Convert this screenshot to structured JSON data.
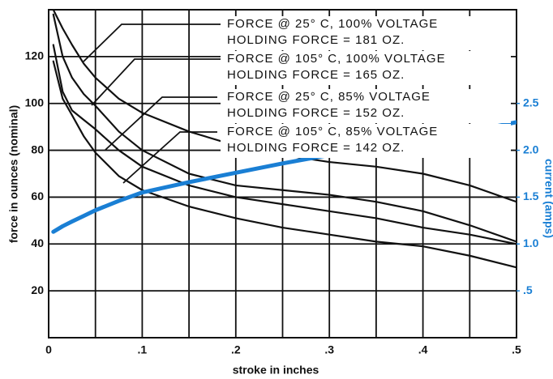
{
  "chart_data": {
    "type": "line",
    "x_label": "stroke in inches",
    "y_label": "force in ounces (nominal)",
    "y2_label": "current (amps)",
    "xlim": [
      0,
      0.5
    ],
    "ylim": [
      0,
      140
    ],
    "y2lim": [
      0,
      3.5
    ],
    "xticks": [
      0,
      {
        "value": 0.1,
        "label": ".1"
      },
      {
        "value": 0.2,
        "label": ".2"
      },
      {
        "value": 0.3,
        "label": ".3"
      },
      {
        "value": 0.4,
        "label": ".4"
      },
      {
        "value": 0.5,
        "label": ".5"
      }
    ],
    "x_minor_grid": [
      0.05,
      0.15,
      0.25,
      0.35,
      0.45
    ],
    "yticks": [
      20,
      40,
      60,
      80,
      100,
      120
    ],
    "y2ticks": [
      {
        "value": 0.5,
        "label": ".5"
      },
      {
        "value": 1,
        "label": "1.0"
      },
      {
        "value": 1.5,
        "label": "1.5"
      },
      {
        "value": 2,
        "label": "2.0"
      },
      {
        "value": 2.5,
        "label": "2.5"
      }
    ],
    "grid": true,
    "x": [
      0.005,
      0.015,
      0.025,
      0.0375,
      0.05,
      0.075,
      0.1,
      0.15,
      0.2,
      0.25,
      0.3,
      0.35,
      0.4,
      0.45,
      0.5
    ],
    "series": [
      {
        "color": "#111111",
        "values": [
          140,
          132,
          125,
          117,
          111,
          102,
          96,
          88,
          82,
          78,
          75,
          73,
          70,
          65,
          58
        ]
      },
      {
        "color": "#111111",
        "values": [
          138,
          120,
          111,
          104,
          99,
          88,
          80,
          70,
          65,
          63,
          61,
          58,
          54,
          48,
          41
        ]
      },
      {
        "color": "#111111",
        "values": [
          125,
          105,
          97,
          93,
          89,
          80,
          73,
          65,
          60,
          57,
          54,
          51,
          47,
          44,
          40
        ]
      },
      {
        "color": "#111111",
        "values": [
          118,
          102,
          95,
          86,
          79,
          69,
          63,
          56,
          51,
          47,
          44,
          41,
          39,
          35,
          30
        ]
      },
      {
        "color": "#1a7fd4",
        "axis": "y2",
        "values": [
          1.13,
          1.19,
          1.24,
          1.3,
          1.36,
          1.46,
          1.55,
          1.66,
          1.76,
          1.86,
          1.95,
          2.03,
          2.11,
          2.2,
          2.3
        ]
      }
    ],
    "annotations": [
      {
        "lines": [
          "FORCE @  25° C, 100% VOLTAGE",
          "HOLDING FORCE = 181 OZ."
        ]
      },
      {
        "lines": [
          "FORCE @ 105° C, 100% VOLTAGE",
          "HOLDING FORCE = 165 OZ."
        ]
      },
      {
        "lines": [
          "FORCE @  25° C,  85% VOLTAGE",
          "HOLDING FORCE = 152 OZ."
        ]
      },
      {
        "lines": [
          "FORCE @ 105° C,  85% VOLTAGE",
          "HOLDING FORCE = 142 OZ."
        ]
      }
    ]
  }
}
